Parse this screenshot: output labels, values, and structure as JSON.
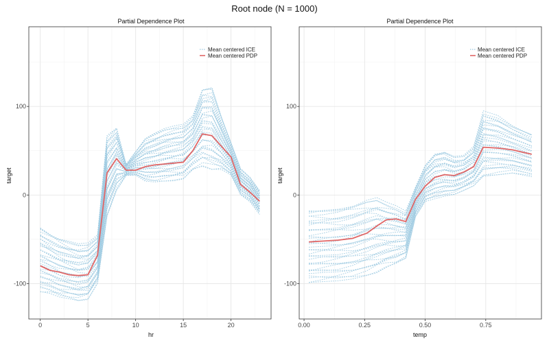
{
  "title": "Root node (N = 1000)",
  "colors": {
    "ice": "#9ecae1",
    "pdp": "#e06666",
    "grid": "#ebebeb",
    "panel_border": "#333333"
  },
  "chart_data": [
    {
      "type": "line",
      "title": "Partial Dependence Plot",
      "xlabel": "hr",
      "ylabel": "target",
      "xlim": [
        -1.2,
        24.2
      ],
      "ylim": [
        -140,
        190
      ],
      "x_ticks": [
        0,
        5,
        10,
        15,
        20
      ],
      "x_tick_labels": [
        "0",
        "5",
        "10",
        "15",
        "20"
      ],
      "y_ticks": [
        -100,
        0,
        100
      ],
      "y_tick_labels": [
        "-100",
        "0",
        "100"
      ],
      "grid": true,
      "legend_position": "top-right",
      "legend": [
        "Mean centered ICE",
        "Mean centered PDP"
      ],
      "x": [
        0,
        1,
        2,
        3,
        4,
        5,
        6,
        7,
        8,
        9,
        10,
        11,
        12,
        13,
        14,
        15,
        16,
        17,
        18,
        19,
        20,
        21,
        22,
        23
      ],
      "series": [
        {
          "name": "Mean centered PDP",
          "style": "solid",
          "values": [
            -80,
            -85,
            -87,
            -90,
            -91,
            -90,
            -68,
            25,
            41,
            28,
            28,
            32,
            34,
            35,
            36,
            37,
            50,
            69,
            67,
            55,
            43,
            12,
            3,
            -7
          ]
        }
      ],
      "ice": {
        "style": "dotted",
        "count": 40,
        "range_low": [
          -110,
          -112,
          -116,
          -118,
          -120,
          -118,
          -100,
          -25,
          5,
          22,
          22,
          15,
          14,
          15,
          16,
          18,
          28,
          32,
          28,
          28,
          22,
          0,
          -8,
          -22
        ],
        "range_high": [
          -35,
          -42,
          -48,
          -52,
          -55,
          -54,
          -45,
          68,
          78,
          35,
          50,
          65,
          70,
          75,
          78,
          80,
          90,
          122,
          124,
          90,
          60,
          30,
          20,
          5
        ]
      }
    },
    {
      "type": "line",
      "title": "Partial Dependence Plot",
      "xlabel": "temp",
      "ylabel": "target",
      "xlim": [
        -0.02,
        0.98
      ],
      "ylim": [
        -140,
        190
      ],
      "x_ticks": [
        0,
        0.25,
        0.5,
        0.75
      ],
      "x_tick_labels": [
        "0.00",
        "0.25",
        "0.50",
        "0.75"
      ],
      "y_ticks": [
        -100,
        0,
        100
      ],
      "y_tick_labels": [
        "-100",
        "0",
        "100"
      ],
      "grid": true,
      "legend_position": "top-right",
      "legend": [
        "Mean centered ICE",
        "Mean centered PDP"
      ],
      "x": [
        0.02,
        0.08,
        0.14,
        0.2,
        0.26,
        0.3,
        0.34,
        0.38,
        0.42,
        0.46,
        0.5,
        0.54,
        0.58,
        0.62,
        0.66,
        0.7,
        0.74,
        0.8,
        0.86,
        0.94
      ],
      "series": [
        {
          "name": "Mean centered PDP",
          "style": "solid",
          "values": [
            -53,
            -52,
            -51,
            -49,
            -43,
            -35,
            -28,
            -27,
            -30,
            -5,
            10,
            20,
            23,
            22,
            26,
            32,
            54,
            53,
            51,
            46
          ]
        }
      ],
      "ice": {
        "style": "dotted",
        "count": 36,
        "range_low": [
          -100,
          -99,
          -98,
          -96,
          -92,
          -88,
          -82,
          -78,
          -72,
          -25,
          -8,
          -5,
          -2,
          0,
          5,
          10,
          20,
          22,
          24,
          20
        ],
        "range_high": [
          -15,
          -14,
          -13,
          -10,
          -5,
          -3,
          -8,
          -12,
          -18,
          10,
          35,
          48,
          50,
          44,
          45,
          55,
          95,
          90,
          80,
          70
        ]
      }
    }
  ]
}
